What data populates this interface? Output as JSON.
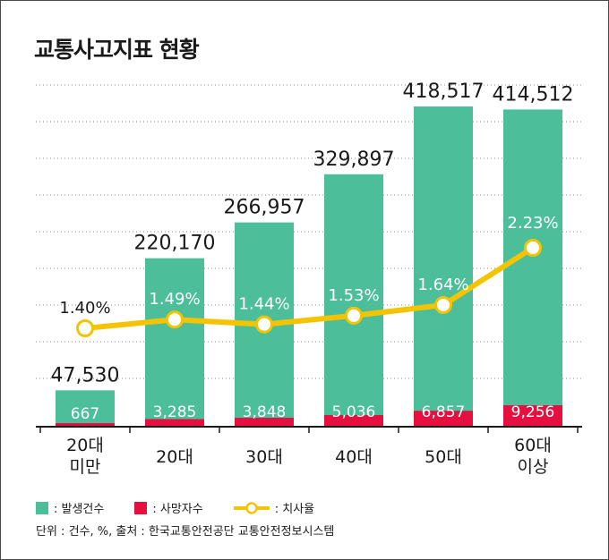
{
  "chart_data": {
    "type": "bar",
    "title": "교통사고지표 현황",
    "categories": [
      [
        "20대",
        "미만"
      ],
      [
        "20대"
      ],
      [
        "30대"
      ],
      [
        "40대"
      ],
      [
        "50대"
      ],
      [
        "60대",
        "이상"
      ]
    ],
    "series": [
      {
        "name": "발생건수",
        "type": "bar",
        "values": [
          47530,
          220170,
          266957,
          329897,
          418517,
          414512
        ],
        "labels": [
          "47,530",
          "220,170",
          "266,957",
          "329,897",
          "418,517",
          "414,512"
        ],
        "color": "#4cbf9a"
      },
      {
        "name": "사망자수",
        "type": "bar",
        "values": [
          667,
          3285,
          3848,
          5036,
          6857,
          9256
        ],
        "labels": [
          "667",
          "3,285",
          "3,848",
          "5,036",
          "6,857",
          "9,256"
        ],
        "color": "#e5103f"
      },
      {
        "name": "치사율",
        "type": "line",
        "values": [
          1.4,
          1.49,
          1.44,
          1.53,
          1.64,
          2.23
        ],
        "labels": [
          "1.40%",
          "1.49%",
          "1.44%",
          "1.53%",
          "1.64%",
          "2.23%"
        ],
        "color": "#f5c400"
      }
    ],
    "grid": true,
    "legend": "bottom-left"
  },
  "legend": {
    "bar": ": 발생건수",
    "death": ": 사망자수",
    "rate": ": 치사율"
  },
  "footnote": "단위 : 건수, %,  출처 : 한국교통안전공단 교통안전정보시스템"
}
